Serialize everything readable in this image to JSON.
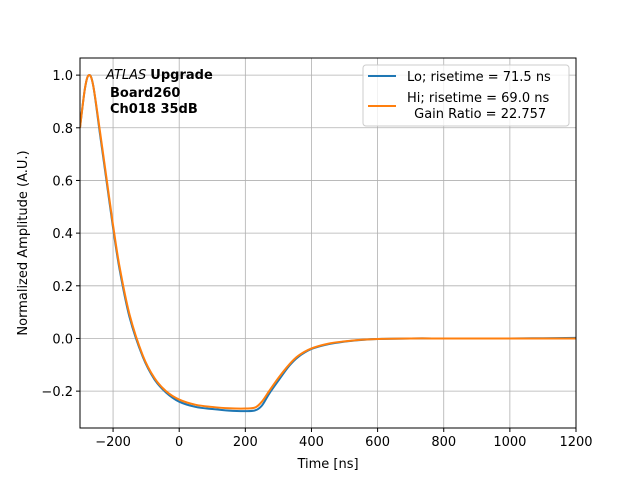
{
  "chart_data": {
    "type": "line",
    "title": "",
    "xlabel": "Time [ns]",
    "ylabel": "Normalized Amplitude (A.U.)",
    "xlim": [
      -300,
      1200
    ],
    "ylim": [
      -0.34,
      1.065
    ],
    "xticks": [
      -200,
      0,
      200,
      400,
      600,
      800,
      1000,
      1200
    ],
    "xtick_labels": [
      "−200",
      "0",
      "200",
      "400",
      "600",
      "800",
      "1000",
      "1200"
    ],
    "yticks": [
      -0.2,
      0.0,
      0.2,
      0.4,
      0.6,
      0.8,
      1.0
    ],
    "ytick_labels": [
      "−0.2",
      "0.0",
      "0.2",
      "0.4",
      "0.6",
      "0.8",
      "1.0"
    ],
    "grid": true,
    "legend_position": "top-right",
    "annotation": {
      "italic": "ATLAS",
      "bold": "Upgrade",
      "line2": "Board260",
      "line3": "Ch018 35dB"
    },
    "series": [
      {
        "name": "Lo; risetime = 71.5 ns",
        "color": "#1f77b4",
        "x": [
          -300,
          -285,
          -273,
          -260,
          -240,
          -220,
          -200,
          -180,
          -150,
          -110,
          -75,
          -40,
          0,
          50,
          100,
          150,
          200,
          230,
          250,
          272,
          300,
          332,
          360,
          400,
          450,
          500,
          550,
          600,
          700,
          800,
          900,
          1000,
          1100,
          1200
        ],
        "y": [
          0.8,
          0.95,
          1.0,
          0.96,
          0.78,
          0.6,
          0.42,
          0.26,
          0.08,
          -0.07,
          -0.155,
          -0.205,
          -0.24,
          -0.26,
          -0.268,
          -0.274,
          -0.276,
          -0.273,
          -0.255,
          -0.21,
          -0.16,
          -0.105,
          -0.07,
          -0.04,
          -0.022,
          -0.012,
          -0.006,
          -0.002,
          0.0,
          0.0,
          0.0,
          0.0,
          0.001,
          0.002
        ]
      },
      {
        "name": "Hi; risetime = 69.0 ns\n Gain Ratio = 22.757",
        "name_line1": "Hi; risetime = 69.0 ns",
        "name_line2": " Gain Ratio = 22.757",
        "color": "#ff7f0e",
        "x": [
          -300,
          -285,
          -273,
          -260,
          -240,
          -220,
          -200,
          -180,
          -150,
          -110,
          -75,
          -40,
          0,
          50,
          100,
          150,
          200,
          230,
          250,
          272,
          300,
          332,
          360,
          400,
          450,
          500,
          550,
          600,
          700,
          800,
          900,
          1000,
          1100,
          1200
        ],
        "y": [
          0.8,
          0.95,
          1.0,
          0.96,
          0.79,
          0.61,
          0.43,
          0.27,
          0.09,
          -0.065,
          -0.15,
          -0.2,
          -0.232,
          -0.252,
          -0.26,
          -0.265,
          -0.266,
          -0.262,
          -0.24,
          -0.2,
          -0.15,
          -0.1,
          -0.066,
          -0.038,
          -0.02,
          -0.011,
          -0.005,
          -0.002,
          0.0,
          0.0,
          0.0,
          0.0,
          0.0,
          0.0
        ]
      }
    ]
  }
}
